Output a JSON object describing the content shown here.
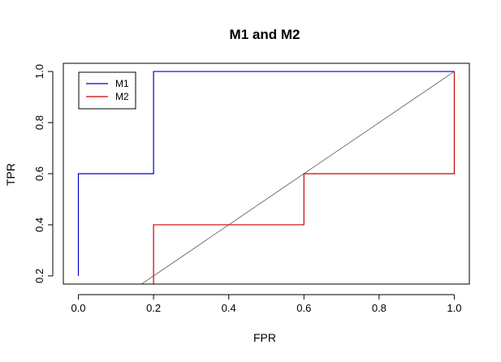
{
  "chart_data": {
    "type": "line",
    "title": "M1 and M2",
    "xlabel": "FPR",
    "ylabel": "TPR",
    "xlim": [
      -0.04,
      1.04
    ],
    "ylim": [
      0.168,
      1.032
    ],
    "xticks": [
      "0.0",
      "0.2",
      "0.4",
      "0.6",
      "0.8",
      "1.0"
    ],
    "yticks": [
      "0.2",
      "0.4",
      "0.6",
      "0.8",
      "1.0"
    ],
    "xtick_values": [
      0,
      0.2,
      0.4,
      0.6,
      0.8,
      1.0
    ],
    "ytick_values": [
      0.2,
      0.4,
      0.6,
      0.8,
      1.0
    ],
    "grid": false,
    "legend": {
      "position": "top-left",
      "entries": [
        "M1",
        "M2"
      ]
    },
    "series": [
      {
        "name": "M1",
        "color": "#0000cc",
        "x": [
          0,
          0,
          0.2,
          0.2,
          1.0
        ],
        "y": [
          0.2,
          0.6,
          0.6,
          1.0,
          1.0
        ]
      },
      {
        "name": "M2",
        "color": "#cc0000",
        "x": [
          0.2,
          0.2,
          0.6,
          0.6,
          1.0,
          1.0
        ],
        "y": [
          0.168,
          0.4,
          0.4,
          0.6,
          0.6,
          1.0
        ]
      }
    ],
    "reference_line": {
      "color": "#555555",
      "x": [
        0,
        1
      ],
      "y": [
        0,
        1
      ]
    }
  }
}
